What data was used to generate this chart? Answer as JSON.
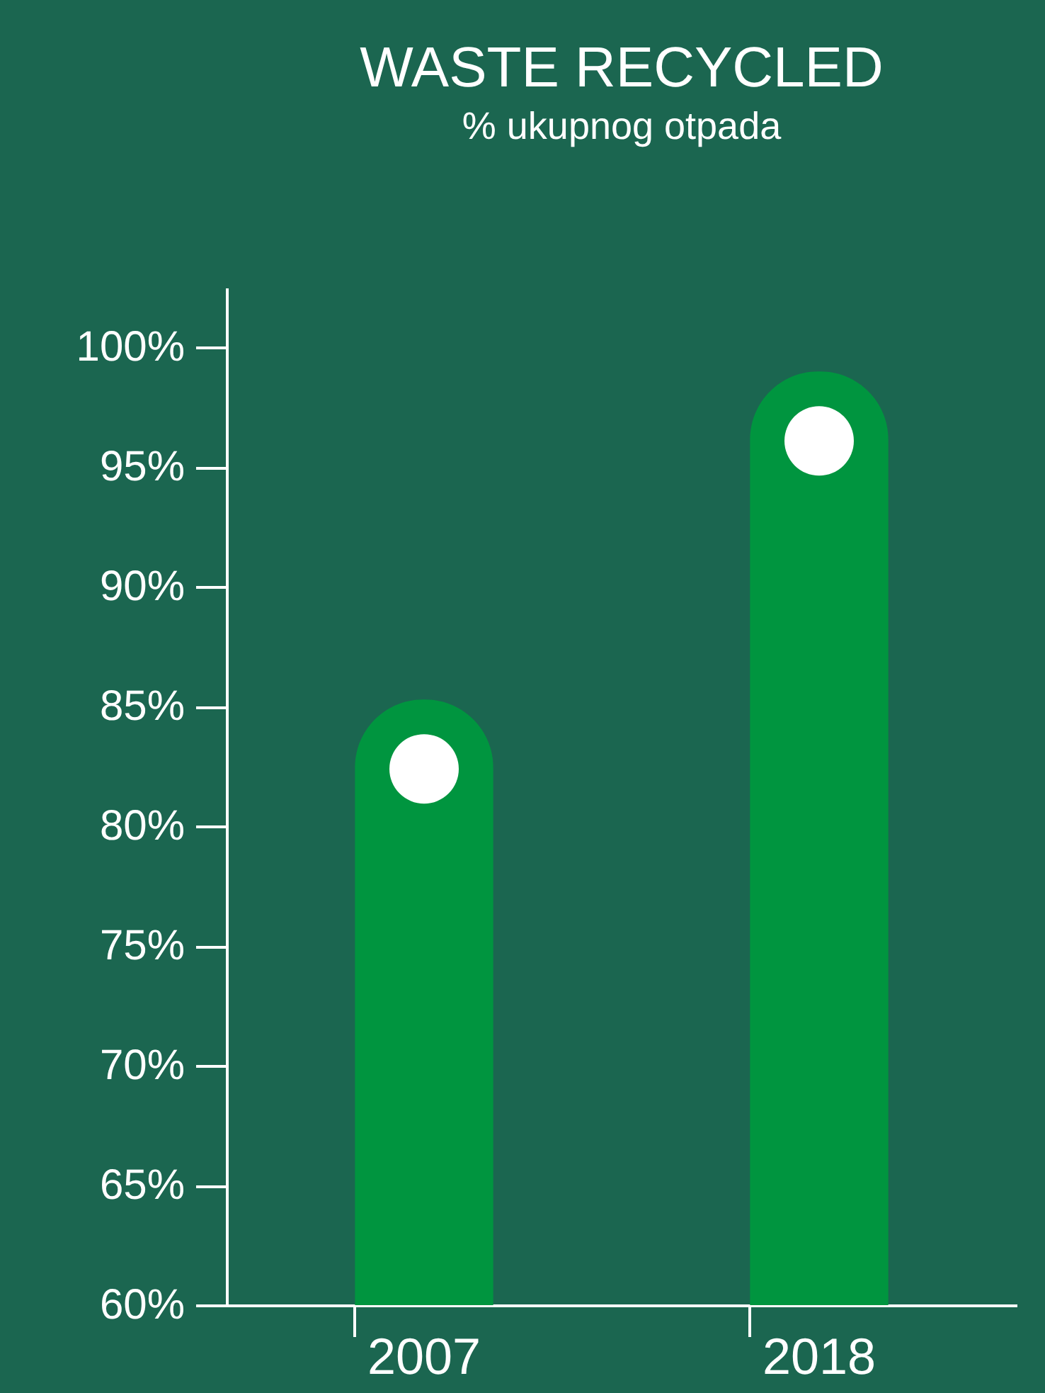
{
  "chart_data": {
    "type": "bar",
    "title": "WASTE RECYCLED",
    "subtitle": "% ukupnog otpada",
    "categories": [
      "2007",
      "2018"
    ],
    "series": [
      {
        "color": "#00953f",
        "values": [
          85.3,
          99.0
        ]
      },
      {
        "type": "scatter",
        "color": "#ffffff",
        "marker": "circle",
        "values": [
          82.4,
          96.1
        ]
      }
    ],
    "ylim": [
      60,
      102.5
    ],
    "yticks": [
      {
        "value": 60,
        "label": "60%"
      },
      {
        "value": 65,
        "label": "65%"
      },
      {
        "value": 70,
        "label": "70%"
      },
      {
        "value": 75,
        "label": "75%"
      },
      {
        "value": 80,
        "label": "80%"
      },
      {
        "value": 85,
        "label": "85%"
      },
      {
        "value": 90,
        "label": "90%"
      },
      {
        "value": 95,
        "label": "95%"
      },
      {
        "value": 100,
        "label": "100%"
      }
    ],
    "grid": false
  }
}
